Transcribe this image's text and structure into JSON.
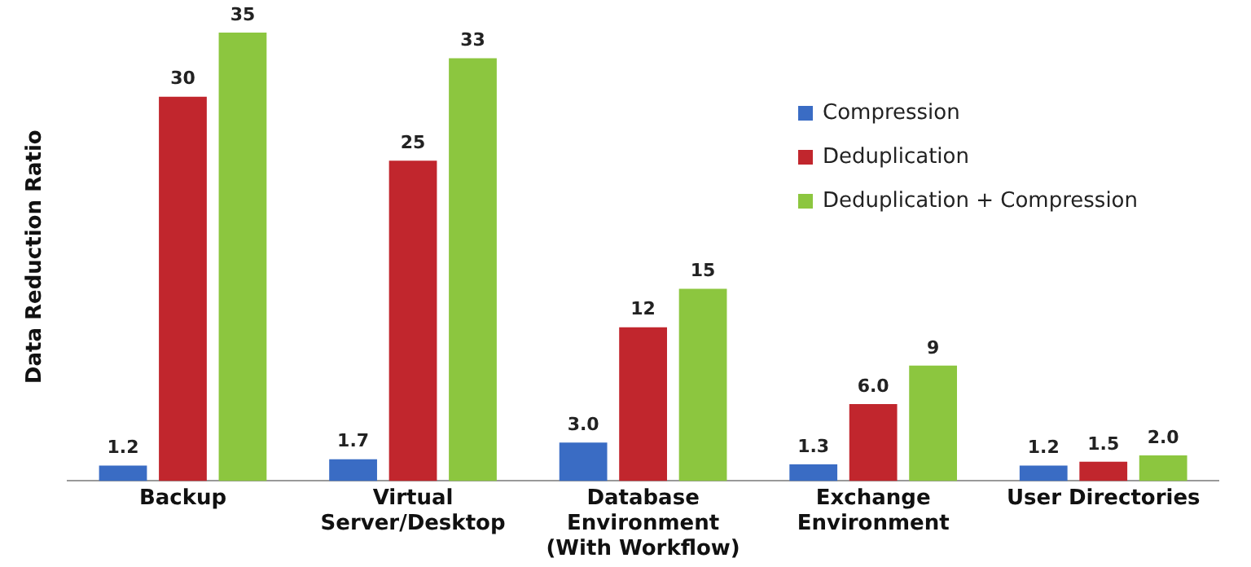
{
  "chart_data": {
    "type": "bar",
    "ylabel": "Data Reduction Ratio",
    "categories": [
      "Backup",
      "Virtual\nServer/Desktop",
      "Database\nEnvironment\n(With Workflow)",
      "Exchange\nEnvironment",
      "User Directories"
    ],
    "series": [
      {
        "name": "Compression",
        "color": "#3a6cc4",
        "values": [
          1.2,
          1.7,
          3.0,
          1.3,
          1.2
        ],
        "value_labels": [
          "1.2",
          "1.7",
          "3.0",
          "1.3",
          "1.2"
        ]
      },
      {
        "name": "Deduplication",
        "color": "#c1262d",
        "values": [
          30,
          25,
          12,
          6.0,
          1.5
        ],
        "value_labels": [
          "30",
          "25",
          "12",
          "6.0",
          "1.5"
        ]
      },
      {
        "name": "Deduplication + Compression",
        "color": "#8cc63f",
        "values": [
          35,
          33,
          15,
          9,
          2.0
        ],
        "value_labels": [
          "35",
          "33",
          "15",
          "9",
          "2.0"
        ]
      }
    ],
    "grid": false,
    "legend": "top right",
    "tick_labels": "x"
  }
}
